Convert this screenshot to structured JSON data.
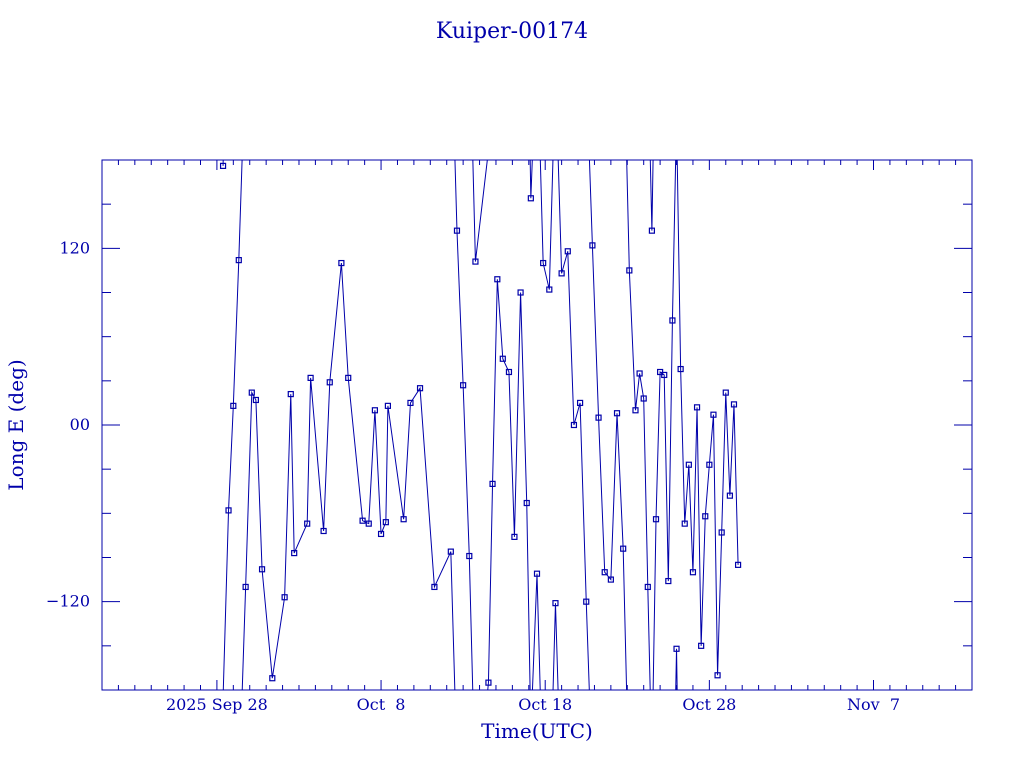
{
  "chart_data": {
    "type": "line",
    "title": "Kuiper-00174",
    "xlabel": "Time(UTC)",
    "ylabel": "Long E (deg)",
    "x_unit": "date",
    "xlim": [
      "2025-09-21",
      "2025-11-13"
    ],
    "ylim": [
      -180,
      180
    ],
    "xtick_labels": [
      {
        "label": "2025 Sep 28",
        "date": "2025-09-28"
      },
      {
        "label": "Oct  8",
        "date": "2025-10-08"
      },
      {
        "label": "Oct 18",
        "date": "2025-10-18"
      },
      {
        "label": "Oct 28",
        "date": "2025-10-28"
      },
      {
        "label": "Nov  7",
        "date": "2025-11-07"
      }
    ],
    "ytick_labels": [
      {
        "label": "120",
        "value": 120
      },
      {
        "label": "00",
        "value": 0
      },
      {
        "label": "−120",
        "value": -120
      }
    ],
    "grid": false,
    "markers": "square",
    "series": [
      {
        "points": [
          [
            "2025-09-28 09:00",
            176
          ],
          [
            "2025-09-28 17:00",
            -58
          ],
          [
            "2025-09-29 00:00",
            13
          ],
          [
            "2025-09-29 08:00",
            112
          ],
          [
            "2025-09-29 18:00",
            -110
          ],
          [
            "2025-09-30 03:00",
            22
          ],
          [
            "2025-09-30 09:00",
            17
          ],
          [
            "2025-09-30 18:00",
            -98
          ],
          [
            "2025-10-01 09:00",
            -172
          ],
          [
            "2025-10-02 03:00",
            -117
          ],
          [
            "2025-10-02 12:00",
            21
          ],
          [
            "2025-10-02 17:00",
            -87
          ],
          [
            "2025-10-03 12:00",
            -67
          ],
          [
            "2025-10-03 17:00",
            32
          ],
          [
            "2025-10-04 12:00",
            -72
          ],
          [
            "2025-10-04 21:00",
            29
          ],
          [
            "2025-10-05 14:00",
            110
          ],
          [
            "2025-10-06 00:00",
            32
          ],
          [
            "2025-10-06 21:00",
            -65
          ],
          [
            "2025-10-07 06:00",
            -67
          ],
          [
            "2025-10-07 15:00",
            10
          ],
          [
            "2025-10-08 00:00",
            -74
          ],
          [
            "2025-10-08 07:00",
            -66
          ],
          [
            "2025-10-08 10:00",
            13
          ],
          [
            "2025-10-09 09:00",
            -64
          ],
          [
            "2025-10-09 19:00",
            15
          ],
          [
            "2025-10-10 09:00",
            25
          ],
          [
            "2025-10-11 06:00",
            -110
          ],
          [
            "2025-10-12 06:00",
            -86
          ],
          [
            "2025-10-12 15:00",
            132
          ],
          [
            "2025-10-13 00:00",
            27
          ],
          [
            "2025-10-13 09:00",
            -89
          ],
          [
            "2025-10-13 18:00",
            111
          ],
          [
            "2025-10-14 13:00",
            -175
          ],
          [
            "2025-10-14 19:00",
            -40
          ],
          [
            "2025-10-15 02:00",
            99
          ],
          [
            "2025-10-15 10:00",
            45
          ],
          [
            "2025-10-15 19:00",
            36
          ],
          [
            "2025-10-16 03:00",
            -76
          ],
          [
            "2025-10-16 12:00",
            90
          ],
          [
            "2025-10-16 21:00",
            -53
          ],
          [
            "2025-10-17 03:00",
            154
          ],
          [
            "2025-10-17 12:00",
            -101
          ],
          [
            "2025-10-17 21:00",
            110
          ],
          [
            "2025-10-18 06:00",
            92
          ],
          [
            "2025-10-18 15:00",
            -121
          ],
          [
            "2025-10-19 00:00",
            103
          ],
          [
            "2025-10-19 09:00",
            118
          ],
          [
            "2025-10-19 18:00",
            0
          ],
          [
            "2025-10-20 03:00",
            15
          ],
          [
            "2025-10-20 12:00",
            -120
          ],
          [
            "2025-10-20 21:00",
            122
          ],
          [
            "2025-10-21 06:00",
            5
          ],
          [
            "2025-10-21 15:00",
            -100
          ],
          [
            "2025-10-22 00:00",
            -105
          ],
          [
            "2025-10-22 09:00",
            8
          ],
          [
            "2025-10-22 18:00",
            -84
          ],
          [
            "2025-10-23 03:00",
            105
          ],
          [
            "2025-10-23 12:00",
            10
          ],
          [
            "2025-10-23 18:00",
            35
          ],
          [
            "2025-10-24 00:00",
            18
          ],
          [
            "2025-10-24 06:00",
            -110
          ],
          [
            "2025-10-24 12:00",
            132
          ],
          [
            "2025-10-24 18:00",
            -64
          ],
          [
            "2025-10-25 00:00",
            36
          ],
          [
            "2025-10-25 06:00",
            34
          ],
          [
            "2025-10-25 12:00",
            -106
          ],
          [
            "2025-10-25 18:00",
            71
          ],
          [
            "2025-10-26 00:00",
            -152
          ],
          [
            "2025-10-26 06:00",
            38
          ],
          [
            "2025-10-26 12:00",
            -67
          ],
          [
            "2025-10-26 18:00",
            -27
          ],
          [
            "2025-10-27 00:00",
            -100
          ],
          [
            "2025-10-27 06:00",
            12
          ],
          [
            "2025-10-27 12:00",
            -150
          ],
          [
            "2025-10-27 18:00",
            -62
          ],
          [
            "2025-10-28 00:00",
            -27
          ],
          [
            "2025-10-28 06:00",
            7
          ],
          [
            "2025-10-28 12:00",
            -170
          ],
          [
            "2025-10-28 18:00",
            -73
          ],
          [
            "2025-10-29 00:00",
            22
          ],
          [
            "2025-10-29 06:00",
            -48
          ],
          [
            "2025-10-29 12:00",
            14
          ],
          [
            "2025-10-29 18:00",
            -95
          ]
        ]
      }
    ]
  }
}
